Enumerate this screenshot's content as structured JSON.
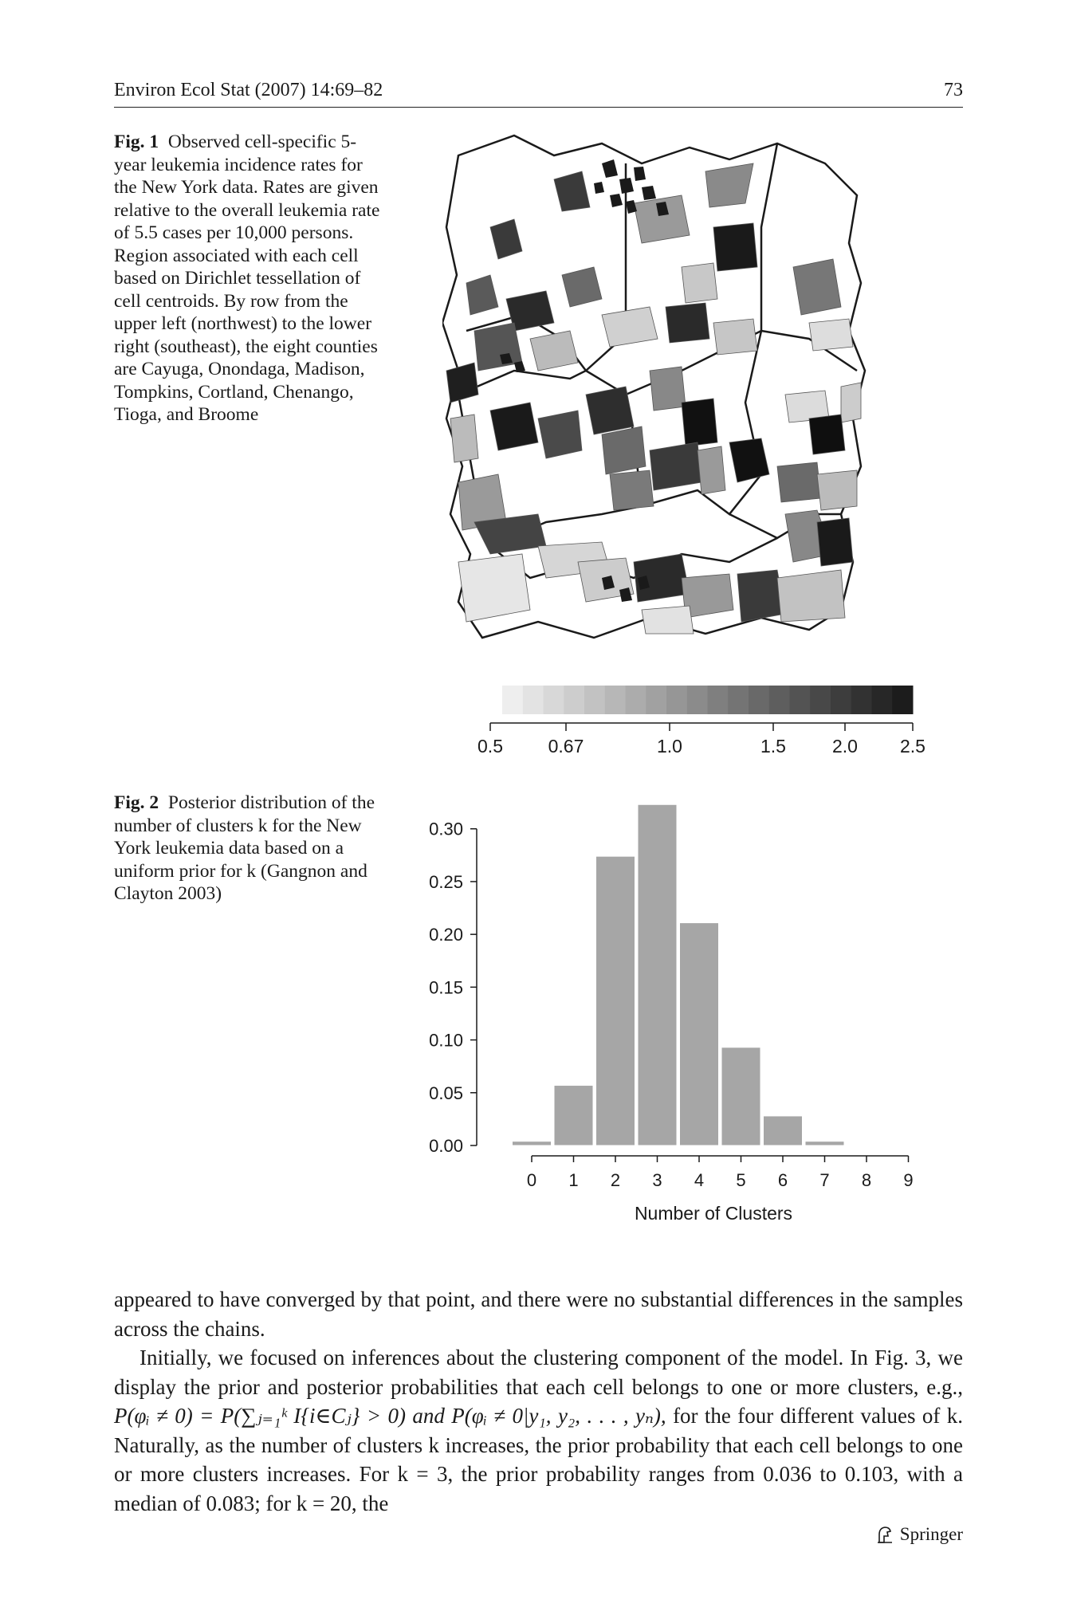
{
  "header": {
    "journal": "Environ Ecol Stat (2007) 14:69–82",
    "page_number": "73"
  },
  "figure1": {
    "label": "Fig. 1",
    "caption": "Observed cell-specific 5-year leukemia incidence rates for the New York data. Rates are given relative to the overall leukemia rate of 5.5 cases per 10,000 persons. Region associated with each cell based on Dirichlet tessellation of cell centroids. By row from the upper left (northwest) to the lower right (southeast), the eight counties are Cayuga, Onondaga, Madison, Tompkins, Cortland, Chenango, Tioga, and Broome",
    "scale_ticks": [
      "0.5",
      "0.67",
      "1.0",
      "1.5",
      "2.0",
      "2.5"
    ]
  },
  "figure2": {
    "label": "Fig. 2",
    "caption": "Posterior distribution of the number of clusters k for the New York leukemia data based on a uniform prior for k (Gangnon and Clayton 2003)"
  },
  "chart_data": {
    "type": "bar",
    "categories": [
      "0",
      "1",
      "2",
      "3",
      "4",
      "5",
      "6",
      "7",
      "8",
      "9"
    ],
    "values": [
      0.004,
      0.057,
      0.274,
      0.323,
      0.211,
      0.093,
      0.028,
      0.004,
      0.0,
      0.0
    ],
    "title": "",
    "xlabel": "Number of Clusters",
    "ylabel": "",
    "ylim": [
      0,
      0.33
    ],
    "yticks": [
      "0.00",
      "0.05",
      "0.10",
      "0.15",
      "0.20",
      "0.25",
      "0.30"
    ],
    "bar_color": "#a6a6a6",
    "grid": false
  },
  "body": {
    "paragraph1": "appeared to have converged by that point, and there were no substantial differences in the samples across the chains.",
    "paragraph2_line1": "Initially, we focused on inferences about the clustering component of the model. In Fig. 3, we display the prior and posterior probabilities that each cell belongs to one or more clusters, e.g.,",
    "paragraph2_math": "P(φᵢ ≠ 0) = P(∑ⱼ₌₁ᵏ I{i∈Cⱼ} > 0) and P(φᵢ ≠ 0|y₁, y₂, . . . , yₙ),",
    "paragraph2_rest": "for the four different values of k. Naturally, as the number of clusters k increases, the prior probability that each cell belongs to one or more clusters increases. For k = 3, the prior probability ranges from 0.036 to 0.103, with a median of 0.083; for k = 20, the"
  },
  "footer": {
    "publisher": "Springer"
  }
}
